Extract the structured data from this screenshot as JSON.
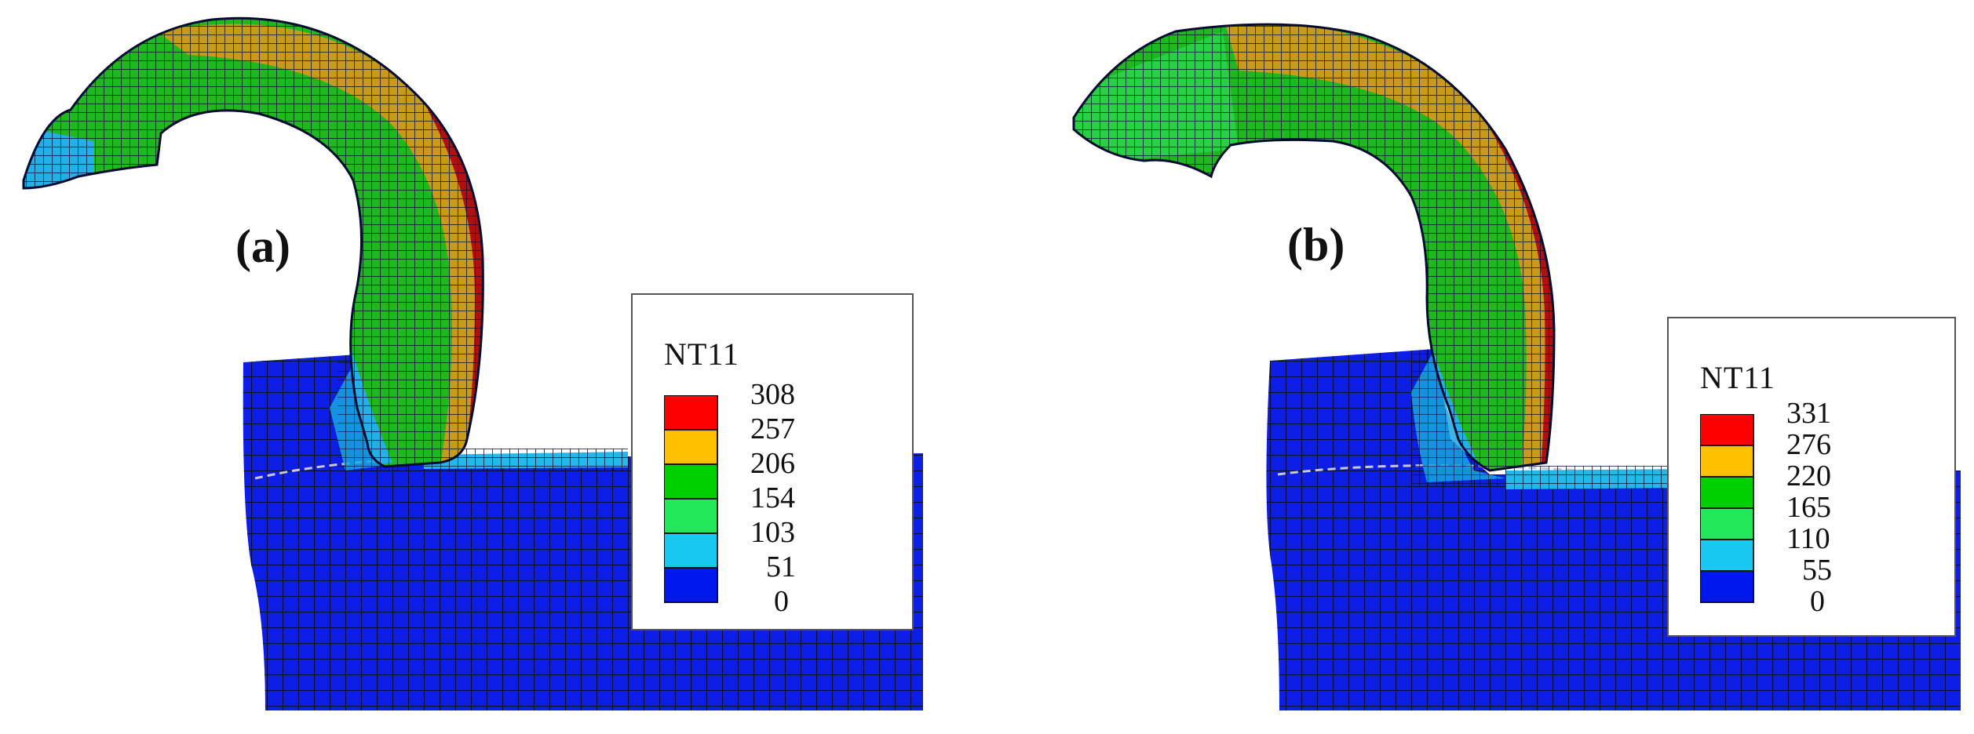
{
  "panels": [
    {
      "label": "(a)",
      "legend": {
        "title": "NT11",
        "ticks": [
          "308",
          "257",
          "206",
          "154",
          "103",
          "51",
          "0"
        ],
        "colors": [
          "#ff0000",
          "#ffc000",
          "#00d000",
          "#22e85a",
          "#18c8ee",
          "#0018f0"
        ]
      }
    },
    {
      "label": "(b)",
      "legend": {
        "title": "NT11",
        "ticks": [
          "331",
          "276",
          "220",
          "165",
          "110",
          "55",
          "0"
        ],
        "colors": [
          "#ff0000",
          "#ffc000",
          "#00d000",
          "#22e85a",
          "#18c8ee",
          "#0018f0"
        ]
      }
    }
  ],
  "colors": {
    "workpiece": "#0d1ee6",
    "chip_green": "#1fb81f",
    "chip_orange": "#c89a1a",
    "chip_red": "#b01010",
    "chip_cyan": "#22b0e8",
    "mesh_line": "#050a30"
  }
}
